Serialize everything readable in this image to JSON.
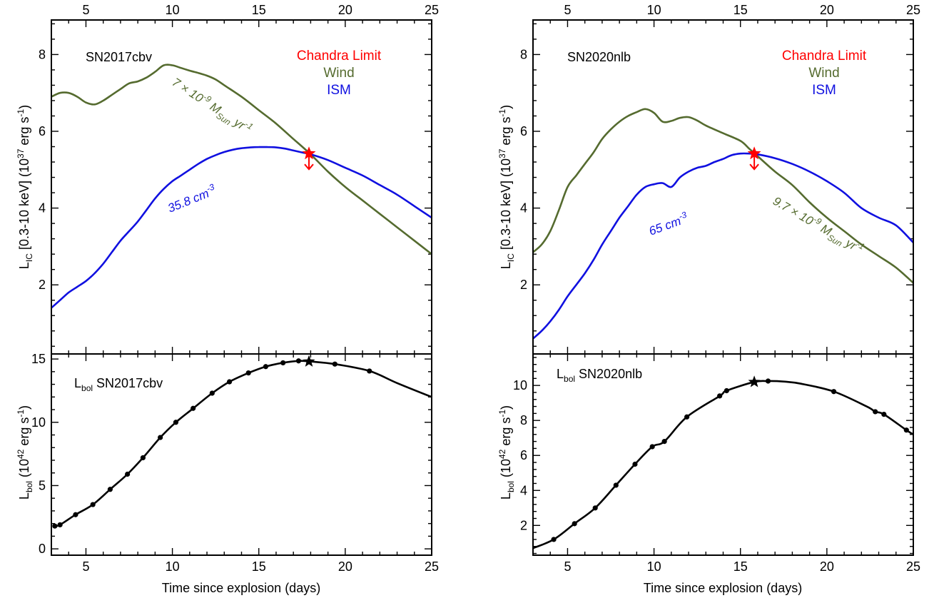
{
  "shared": {
    "xlabel": "Time since explosion (days)",
    "top_ylabel": "L_IC [0.3-10 keV] (10^37 erg s^-1)",
    "bottom_ylabel": "L_bol (10^42 erg s^-1)",
    "legend": {
      "chandra": "Chandra Limit",
      "wind": "Wind",
      "ism": "ISM"
    },
    "colors": {
      "wind": "#556b2f",
      "ism": "#1010e0",
      "chandra": "#ff0000",
      "bol": "#000000"
    }
  },
  "chart_data": [
    {
      "type": "line",
      "panel": "left-top",
      "label": "SN2017cbv",
      "xlim": [
        3,
        25
      ],
      "ylim": [
        0.2,
        8.9
      ],
      "x_ticks": [
        5,
        10,
        15,
        20,
        25
      ],
      "y_ticks": [
        2,
        4,
        6,
        8
      ],
      "series": [
        {
          "name": "Wind",
          "x": [
            3,
            3.5,
            4,
            4.5,
            5,
            5.5,
            6,
            6.5,
            7,
            7.5,
            8,
            8.5,
            9,
            9.5,
            10,
            10.5,
            11,
            11.5,
            12,
            12.5,
            13,
            14,
            15,
            16,
            17,
            18,
            19,
            20,
            21,
            22,
            23,
            24,
            25
          ],
          "y": [
            6.9,
            7.0,
            7.0,
            6.9,
            6.75,
            6.7,
            6.8,
            6.95,
            7.1,
            7.25,
            7.3,
            7.4,
            7.55,
            7.72,
            7.72,
            7.65,
            7.58,
            7.52,
            7.45,
            7.35,
            7.2,
            6.9,
            6.55,
            6.2,
            5.8,
            5.4,
            4.95,
            4.55,
            4.2,
            3.85,
            3.5,
            3.15,
            2.8
          ]
        },
        {
          "name": "ISM",
          "x": [
            3,
            3.5,
            4,
            4.5,
            5,
            5.5,
            6,
            6.5,
            7,
            7.5,
            8,
            8.5,
            9,
            9.5,
            10,
            10.5,
            11,
            11.5,
            12,
            12.5,
            13,
            13.5,
            14,
            14.5,
            15,
            15.5,
            16,
            16.5,
            17,
            17.5,
            18,
            19,
            20,
            21,
            22,
            23,
            24,
            25
          ],
          "y": [
            1.4,
            1.6,
            1.8,
            1.95,
            2.1,
            2.3,
            2.55,
            2.85,
            3.15,
            3.4,
            3.65,
            3.95,
            4.25,
            4.5,
            4.7,
            4.85,
            5.0,
            5.15,
            5.28,
            5.38,
            5.46,
            5.52,
            5.56,
            5.58,
            5.59,
            5.59,
            5.58,
            5.55,
            5.5,
            5.45,
            5.4,
            5.25,
            5.05,
            4.85,
            4.6,
            4.35,
            4.05,
            3.75
          ]
        }
      ],
      "chandra_limit": {
        "x": 17.9,
        "y": 5.42
      },
      "annotations": {
        "wind_rate": "7 × 10-9 MSun yr-1",
        "ism_density": "35.8 cm-3"
      }
    },
    {
      "type": "line",
      "panel": "left-bottom",
      "label": "Lbol SN2017cbv",
      "xlim": [
        3,
        25
      ],
      "ylim": [
        -0.5,
        15.4
      ],
      "x_ticks": [
        5,
        10,
        15,
        20,
        25
      ],
      "y_ticks": [
        0,
        5,
        10,
        15
      ],
      "series": [
        {
          "name": "Lbol",
          "x": [
            3.2,
            3.5,
            4.4,
            5.4,
            6.4,
            7.4,
            8.3,
            9.3,
            10.2,
            11.2,
            12.3,
            13.3,
            14.4,
            15.4,
            16.4,
            17.3,
            18.0,
            19.4,
            21.4,
            23.0,
            25.0
          ],
          "y": [
            1.8,
            1.9,
            2.7,
            3.5,
            4.7,
            5.9,
            7.2,
            8.8,
            10.0,
            11.1,
            12.3,
            13.2,
            13.9,
            14.4,
            14.7,
            14.85,
            14.8,
            14.6,
            14.05,
            13.1,
            12.0
          ]
        }
      ],
      "measured_points_x": [
        3.2,
        3.5,
        4.4,
        5.4,
        6.4,
        7.4,
        8.3,
        9.3,
        10.2,
        11.2,
        12.3,
        13.3,
        14.4,
        15.4,
        16.4,
        17.3,
        19.4,
        21.4
      ],
      "peak": {
        "x": 17.9,
        "y": 14.8
      }
    },
    {
      "type": "line",
      "panel": "right-top",
      "label": "SN2020nlb",
      "xlim": [
        3,
        25
      ],
      "ylim": [
        0.2,
        8.9
      ],
      "x_ticks": [
        5,
        10,
        15,
        20,
        25
      ],
      "y_ticks": [
        2,
        4,
        6,
        8
      ],
      "series": [
        {
          "name": "Wind",
          "x": [
            3,
            3.5,
            4,
            4.5,
            5,
            5.5,
            6,
            6.5,
            7,
            7.5,
            8,
            8.5,
            9,
            9.5,
            10,
            10.5,
            11,
            11.5,
            12,
            12.5,
            13,
            14,
            15,
            15.5,
            16,
            17,
            18,
            19,
            20,
            21,
            22,
            23,
            24,
            25
          ],
          "y": [
            2.85,
            3.05,
            3.4,
            3.95,
            4.55,
            4.85,
            5.15,
            5.45,
            5.8,
            6.05,
            6.25,
            6.4,
            6.5,
            6.58,
            6.48,
            6.25,
            6.27,
            6.35,
            6.37,
            6.28,
            6.15,
            5.95,
            5.75,
            5.55,
            5.35,
            4.95,
            4.6,
            4.15,
            3.75,
            3.4,
            3.05,
            2.75,
            2.45,
            2.05
          ]
        },
        {
          "name": "ISM",
          "x": [
            3,
            3.5,
            4,
            4.5,
            5,
            5.5,
            6,
            6.5,
            7,
            7.5,
            8,
            8.5,
            9,
            9.5,
            10,
            10.5,
            11,
            11.5,
            12,
            12.5,
            13,
            13.5,
            14,
            14.5,
            15,
            15.5,
            16,
            17,
            18,
            19,
            20,
            21,
            22,
            23,
            24,
            25
          ],
          "y": [
            0.6,
            0.8,
            1.05,
            1.35,
            1.7,
            2.0,
            2.3,
            2.65,
            3.05,
            3.4,
            3.75,
            4.05,
            4.35,
            4.55,
            4.62,
            4.65,
            4.55,
            4.8,
            4.95,
            5.05,
            5.1,
            5.2,
            5.28,
            5.38,
            5.42,
            5.42,
            5.4,
            5.3,
            5.15,
            4.95,
            4.7,
            4.4,
            4.0,
            3.75,
            3.55,
            3.1
          ]
        }
      ],
      "chandra_limit": {
        "x": 15.8,
        "y": 5.42
      },
      "annotations": {
        "wind_rate": "9.7 × 10-9 MSun yr-1",
        "ism_density": "65 cm-3"
      }
    },
    {
      "type": "line",
      "panel": "right-bottom",
      "label": "Lbol SN2020nlb",
      "xlim": [
        3,
        25
      ],
      "ylim": [
        0.3,
        11.8
      ],
      "x_ticks": [
        5,
        10,
        15,
        20,
        25
      ],
      "y_ticks": [
        2,
        4,
        6,
        8,
        10
      ],
      "series": [
        {
          "name": "Lbol",
          "x": [
            3.0,
            4.2,
            5.4,
            6.6,
            7.8,
            8.9,
            9.9,
            10.6,
            11.9,
            13.8,
            14.2,
            15.8,
            16.6,
            17.5,
            18.5,
            20.4,
            22.3,
            22.8,
            23.3,
            24.6,
            25.0
          ],
          "y": [
            0.7,
            1.2,
            2.1,
            3.0,
            4.3,
            5.5,
            6.5,
            6.8,
            8.2,
            9.4,
            9.7,
            10.2,
            10.25,
            10.22,
            10.1,
            9.65,
            8.8,
            8.5,
            8.35,
            7.45,
            7.2
          ]
        }
      ],
      "measured_points_x": [
        4.2,
        5.4,
        6.6,
        7.8,
        8.9,
        9.9,
        10.6,
        11.9,
        13.8,
        14.2,
        16.6,
        20.4,
        22.8,
        23.3,
        24.6
      ],
      "peak": {
        "x": 15.8,
        "y": 10.2
      }
    }
  ]
}
